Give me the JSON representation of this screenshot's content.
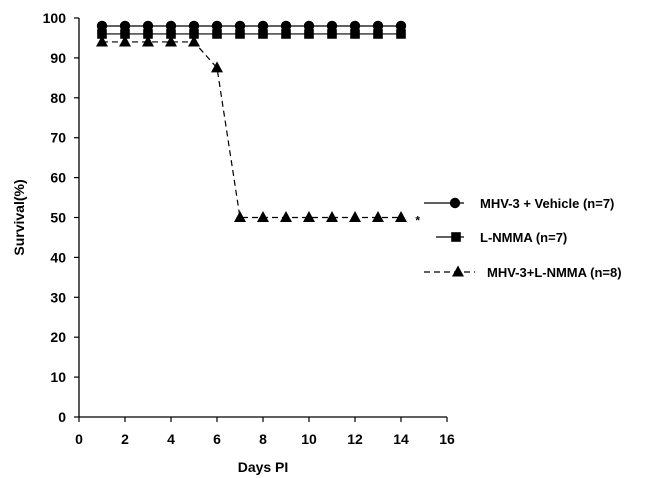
{
  "chart_data": {
    "type": "line",
    "title": "",
    "xlabel": "Days PI",
    "ylabel": "Survival(%)",
    "xlim": [
      0,
      16
    ],
    "ylim": [
      0,
      100
    ],
    "xticks": [
      0,
      2,
      4,
      6,
      8,
      10,
      12,
      14,
      16
    ],
    "yticks": [
      0,
      10,
      20,
      30,
      40,
      50,
      60,
      70,
      80,
      90,
      100
    ],
    "grid": false,
    "legend_position": "right",
    "series": [
      {
        "name": "MHV-3 + Vehicle (n=7)",
        "marker": "circle",
        "x": [
          1,
          2,
          3,
          4,
          5,
          6,
          7,
          8,
          9,
          10,
          11,
          12,
          13,
          14
        ],
        "y": [
          98,
          98,
          98,
          98,
          98,
          98,
          98,
          98,
          98,
          98,
          98,
          98,
          98,
          98
        ]
      },
      {
        "name": "L-NMMA (n=7)",
        "marker": "square",
        "x": [
          1,
          2,
          3,
          4,
          5,
          6,
          7,
          8,
          9,
          10,
          11,
          12,
          13,
          14
        ],
        "y": [
          96,
          96,
          96,
          96,
          96,
          96,
          96,
          96,
          96,
          96,
          96,
          96,
          96,
          96
        ]
      },
      {
        "name": "MHV-3+L-NMMA (n=8)",
        "marker": "triangle",
        "x": [
          1,
          2,
          3,
          4,
          5,
          6,
          7,
          8,
          9,
          10,
          11,
          12,
          13,
          14
        ],
        "y": [
          94,
          94,
          94,
          94,
          94,
          87.5,
          50,
          50,
          50,
          50,
          50,
          50,
          50,
          50
        ]
      }
    ],
    "annotations": [
      {
        "text": "*",
        "x": 14.8,
        "y": 50
      }
    ]
  }
}
